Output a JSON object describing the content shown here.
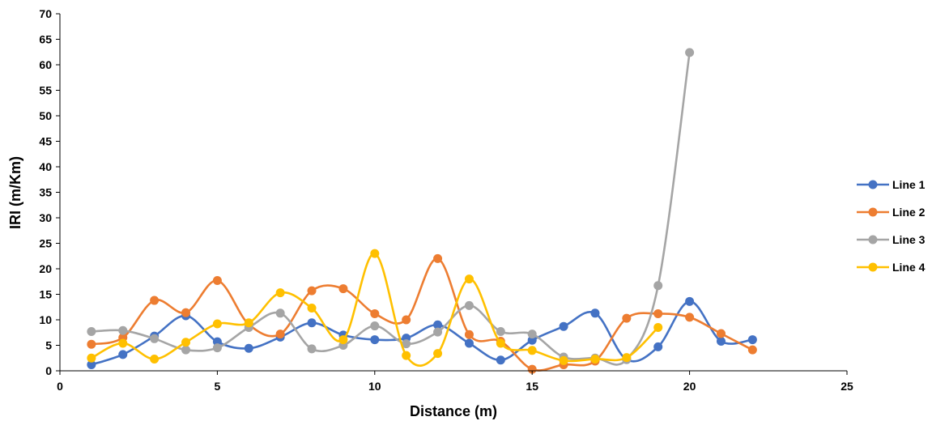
{
  "chart_data": {
    "type": "line",
    "smooth": true,
    "markers": true,
    "grid": false,
    "xlabel": "Distance (m)",
    "ylabel": "IRI (m/Km)",
    "xlim": [
      0,
      25
    ],
    "ylim": [
      0,
      70
    ],
    "x_ticks": [
      0,
      5,
      10,
      15,
      20,
      25
    ],
    "y_ticks": [
      0,
      5,
      10,
      15,
      20,
      25,
      30,
      35,
      40,
      45,
      50,
      55,
      60,
      65,
      70
    ],
    "legend_position": "right",
    "series": [
      {
        "name": "Line 1",
        "color": "#4472C4",
        "x": [
          1,
          2,
          3,
          4,
          5,
          6,
          7,
          8,
          9,
          10,
          11,
          12,
          13,
          14,
          15,
          16,
          17,
          18,
          19,
          20,
          21,
          22
        ],
        "y": [
          1.2,
          3.2,
          6.8,
          10.8,
          5.7,
          4.4,
          6.6,
          9.4,
          7.0,
          6.1,
          6.4,
          9.0,
          5.4,
          2.1,
          6.0,
          8.7,
          11.3,
          2.2,
          4.7,
          13.6,
          5.8,
          6.1
        ]
      },
      {
        "name": "Line 2",
        "color": "#ED7D31",
        "x": [
          1,
          2,
          3,
          4,
          5,
          6,
          7,
          8,
          9,
          10,
          11,
          12,
          13,
          14,
          15,
          16,
          17,
          18,
          19,
          20,
          21,
          22
        ],
        "y": [
          5.2,
          6.5,
          13.8,
          11.4,
          17.7,
          9.1,
          7.2,
          15.7,
          16.1,
          11.2,
          10.0,
          22.0,
          7.1,
          5.8,
          0.3,
          1.2,
          1.9,
          10.3,
          11.2,
          10.5,
          7.3,
          4.1
        ]
      },
      {
        "name": "Line 3",
        "color": "#A5A5A5",
        "x": [
          1,
          2,
          3,
          4,
          5,
          6,
          7,
          8,
          9,
          10,
          11,
          12,
          13,
          14,
          15,
          16,
          17,
          18,
          19,
          20
        ],
        "y": [
          7.7,
          7.9,
          6.3,
          4.1,
          4.5,
          8.5,
          11.3,
          4.3,
          5.0,
          8.8,
          5.3,
          7.6,
          12.8,
          7.7,
          7.2,
          2.7,
          2.5,
          2.2,
          16.7,
          62.4
        ]
      },
      {
        "name": "Line 4",
        "color": "#FFC000",
        "x": [
          1,
          2,
          3,
          4,
          5,
          6,
          7,
          8,
          9,
          10,
          11,
          12,
          13,
          14,
          15,
          16,
          17,
          18,
          19
        ],
        "y": [
          2.5,
          5.4,
          2.3,
          5.6,
          9.2,
          9.4,
          15.3,
          12.3,
          6.1,
          23.0,
          3.0,
          3.4,
          18.0,
          5.4,
          4.0,
          2.0,
          2.3,
          2.6,
          8.5
        ]
      }
    ]
  }
}
